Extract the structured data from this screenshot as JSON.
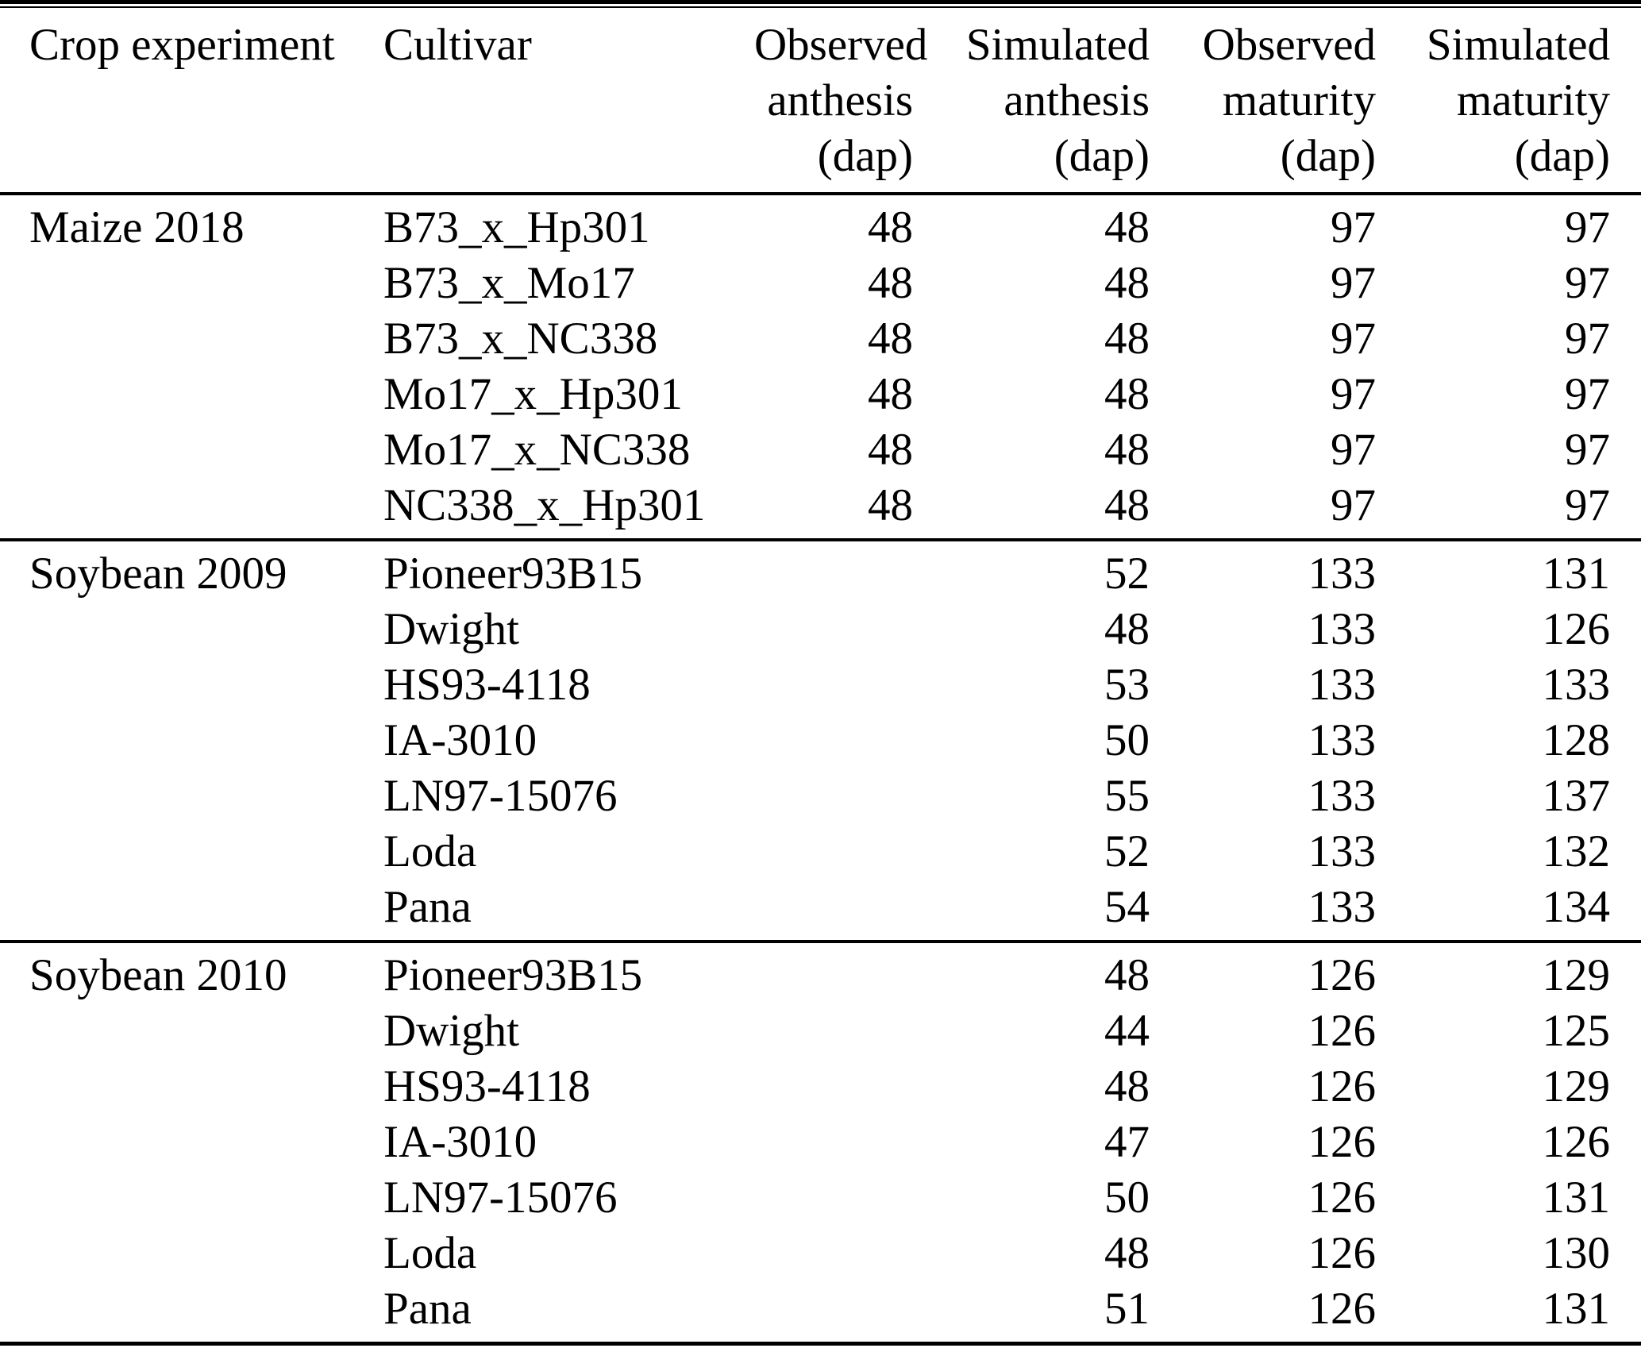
{
  "table": {
    "headers": [
      {
        "lines": [
          "Crop experiment"
        ]
      },
      {
        "lines": [
          "Cultivar"
        ]
      },
      {
        "lines": [
          "Observed",
          "anthesis",
          "(dap)"
        ]
      },
      {
        "lines": [
          "Simulated",
          "anthesis",
          "(dap)"
        ]
      },
      {
        "lines": [
          "Observed",
          "maturity",
          "(dap)"
        ]
      },
      {
        "lines": [
          "Simulated",
          "maturity",
          "(dap)"
        ]
      }
    ],
    "sections": [
      {
        "experiment": "Maize 2018",
        "rows": [
          {
            "cultivar": "B73_x_Hp301",
            "observed_anthesis": "48",
            "simulated_anthesis": "48",
            "observed_maturity": "97",
            "simulated_maturity": "97"
          },
          {
            "cultivar": "B73_x_Mo17",
            "observed_anthesis": "48",
            "simulated_anthesis": "48",
            "observed_maturity": "97",
            "simulated_maturity": "97"
          },
          {
            "cultivar": "B73_x_NC338",
            "observed_anthesis": "48",
            "simulated_anthesis": "48",
            "observed_maturity": "97",
            "simulated_maturity": "97"
          },
          {
            "cultivar": "Mo17_x_Hp301",
            "observed_anthesis": "48",
            "simulated_anthesis": "48",
            "observed_maturity": "97",
            "simulated_maturity": "97"
          },
          {
            "cultivar": "Mo17_x_NC338",
            "observed_anthesis": "48",
            "simulated_anthesis": "48",
            "observed_maturity": "97",
            "simulated_maturity": "97"
          },
          {
            "cultivar": "NC338_x_Hp301",
            "observed_anthesis": "48",
            "simulated_anthesis": "48",
            "observed_maturity": "97",
            "simulated_maturity": "97"
          }
        ]
      },
      {
        "experiment": "Soybean 2009",
        "rows": [
          {
            "cultivar": "Pioneer93B15",
            "observed_anthesis": "",
            "simulated_anthesis": "52",
            "observed_maturity": "133",
            "simulated_maturity": "131"
          },
          {
            "cultivar": "Dwight",
            "observed_anthesis": "",
            "simulated_anthesis": "48",
            "observed_maturity": "133",
            "simulated_maturity": "126"
          },
          {
            "cultivar": "HS93-4118",
            "observed_anthesis": "",
            "simulated_anthesis": "53",
            "observed_maturity": "133",
            "simulated_maturity": "133"
          },
          {
            "cultivar": "IA-3010",
            "observed_anthesis": "",
            "simulated_anthesis": "50",
            "observed_maturity": "133",
            "simulated_maturity": "128"
          },
          {
            "cultivar": "LN97-15076",
            "observed_anthesis": "",
            "simulated_anthesis": "55",
            "observed_maturity": "133",
            "simulated_maturity": "137"
          },
          {
            "cultivar": "Loda",
            "observed_anthesis": "",
            "simulated_anthesis": "52",
            "observed_maturity": "133",
            "simulated_maturity": "132"
          },
          {
            "cultivar": "Pana",
            "observed_anthesis": "",
            "simulated_anthesis": "54",
            "observed_maturity": "133",
            "simulated_maturity": "134"
          }
        ]
      },
      {
        "experiment": "Soybean 2010",
        "rows": [
          {
            "cultivar": "Pioneer93B15",
            "observed_anthesis": "",
            "simulated_anthesis": "48",
            "observed_maturity": "126",
            "simulated_maturity": "129"
          },
          {
            "cultivar": "Dwight",
            "observed_anthesis": "",
            "simulated_anthesis": "44",
            "observed_maturity": "126",
            "simulated_maturity": "125"
          },
          {
            "cultivar": "HS93-4118",
            "observed_anthesis": "",
            "simulated_anthesis": "48",
            "observed_maturity": "126",
            "simulated_maturity": "129"
          },
          {
            "cultivar": "IA-3010",
            "observed_anthesis": "",
            "simulated_anthesis": "47",
            "observed_maturity": "126",
            "simulated_maturity": "126"
          },
          {
            "cultivar": "LN97-15076",
            "observed_anthesis": "",
            "simulated_anthesis": "50",
            "observed_maturity": "126",
            "simulated_maturity": "131"
          },
          {
            "cultivar": "Loda",
            "observed_anthesis": "",
            "simulated_anthesis": "48",
            "observed_maturity": "126",
            "simulated_maturity": "130"
          },
          {
            "cultivar": "Pana",
            "observed_anthesis": "",
            "simulated_anthesis": "51",
            "observed_maturity": "126",
            "simulated_maturity": "131"
          }
        ]
      }
    ]
  }
}
